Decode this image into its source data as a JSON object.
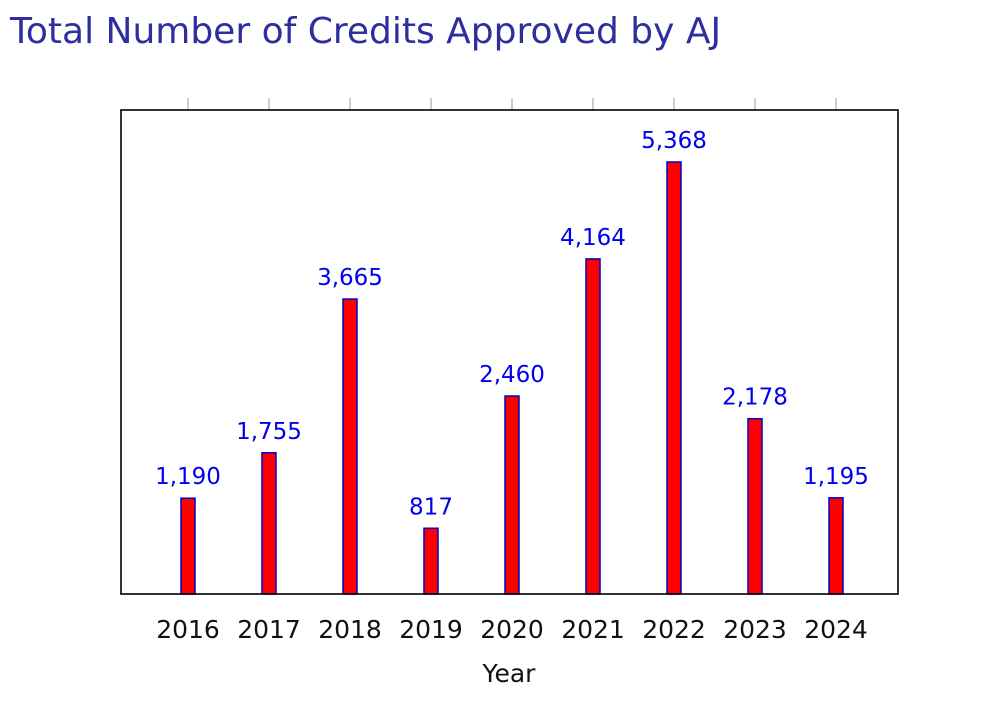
{
  "title": "Total Number of Credits Approved by AJ",
  "colors": {
    "title": "#2e2e9e",
    "bar_fill": "#ff0000",
    "bar_stroke": "#0000cc",
    "data_label": "#0000ee",
    "axis": "#000000",
    "tick": "#999999"
  },
  "chart_data": {
    "type": "bar",
    "title": "Total Number of Credits Approved by AJ",
    "xlabel": "Year",
    "ylabel": "",
    "categories": [
      "2016",
      "2017",
      "2018",
      "2019",
      "2020",
      "2021",
      "2022",
      "2023",
      "2024"
    ],
    "values": [
      1190,
      1755,
      3665,
      817,
      2460,
      4164,
      5368,
      2178,
      1195
    ],
    "data_labels": [
      "1,190",
      "1,755",
      "3,665",
      "817",
      "2,460",
      "4,164",
      "5,368",
      "2,178",
      "1,195"
    ],
    "ylim": [
      0,
      5368
    ],
    "y_ticks_shown": false,
    "grid": false,
    "legend": "none"
  }
}
